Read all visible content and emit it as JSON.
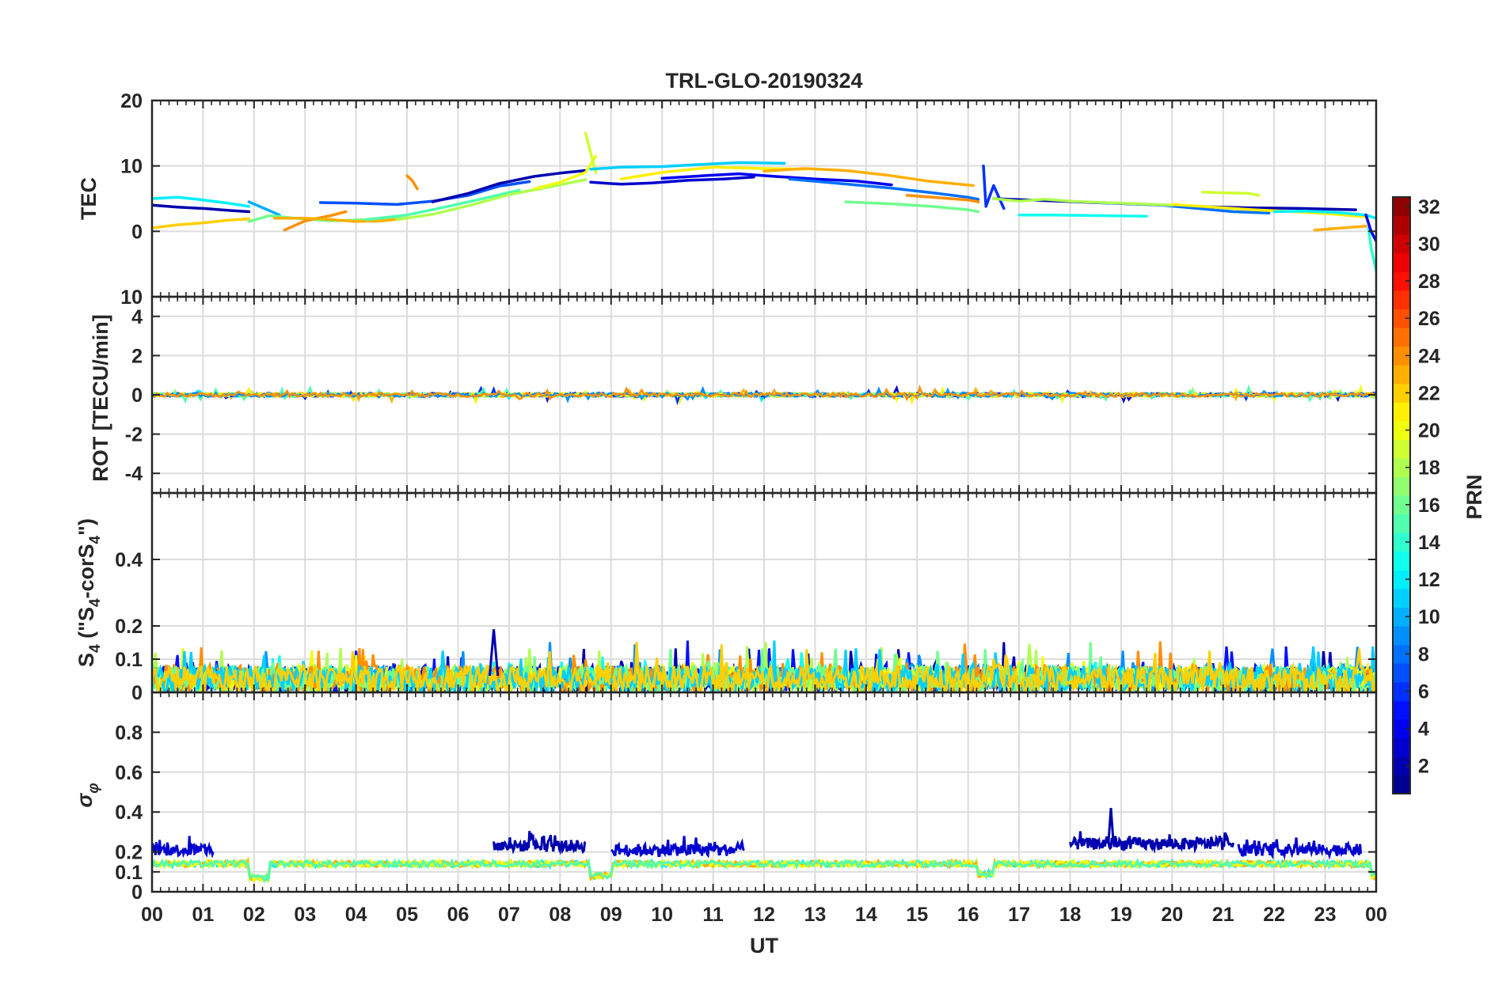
{
  "chart_data": {
    "type": "line",
    "title": "TRL-GLO-20190324",
    "xlabel": "UT",
    "x_tick_labels": [
      "00",
      "01",
      "02",
      "03",
      "04",
      "05",
      "06",
      "07",
      "08",
      "09",
      "10",
      "11",
      "12",
      "13",
      "14",
      "15",
      "16",
      "17",
      "18",
      "19",
      "20",
      "21",
      "22",
      "23",
      "00"
    ],
    "xlim": [
      0,
      24
    ],
    "colorbar": {
      "label": "PRN",
      "range": [
        1,
        32
      ],
      "tick_labels": [
        "2",
        "4",
        "6",
        "8",
        "10",
        "12",
        "14",
        "16",
        "18",
        "20",
        "22",
        "24",
        "26",
        "28",
        "30",
        "32"
      ]
    },
    "panels": [
      {
        "name": "tec",
        "ylabel": "TEC",
        "ylim": [
          -10,
          20
        ],
        "y_tick_labels": [
          "0",
          "10",
          "20"
        ],
        "y_tick_values": [
          0,
          10,
          20
        ],
        "series": [
          {
            "prn": 2,
            "x": [
              0.0,
              0.5,
              1.0,
              1.5,
              1.9
            ],
            "y": [
              4.0,
              3.7,
              3.5,
              3.2,
              3.0
            ]
          },
          {
            "prn": 12,
            "x": [
              0.0,
              0.5,
              1.0,
              1.5,
              1.9
            ],
            "y": [
              5.0,
              5.2,
              4.8,
              4.3,
              3.8
            ]
          },
          {
            "prn": 22,
            "x": [
              0.0,
              0.5,
              1.0,
              1.5,
              1.9
            ],
            "y": [
              0.5,
              1.0,
              1.3,
              1.7,
              1.9
            ]
          },
          {
            "prn": 10,
            "x": [
              1.9,
              2.2,
              2.5
            ],
            "y": [
              4.5,
              3.5,
              2.5
            ]
          },
          {
            "prn": 16,
            "x": [
              1.9,
              2.3,
              2.8,
              3.5,
              4.2,
              5.0
            ],
            "y": [
              1.5,
              2.4,
              2.0,
              1.6,
              1.8,
              2.0
            ]
          },
          {
            "prn": 24,
            "x": [
              2.6,
              3.0,
              3.5,
              3.8
            ],
            "y": [
              0.2,
              1.6,
              2.4,
              3.0
            ]
          },
          {
            "prn": 23,
            "x": [
              2.4,
              3.0,
              3.5,
              4.0,
              4.5,
              5.0
            ],
            "y": [
              2.0,
              2.0,
              1.8,
              1.5,
              1.6,
              2.0
            ]
          },
          {
            "prn": 7,
            "x": [
              3.3,
              4.0,
              4.8,
              5.5,
              6.2,
              6.8,
              7.4
            ],
            "y": [
              4.4,
              4.3,
              4.1,
              4.6,
              5.5,
              6.9,
              7.6
            ]
          },
          {
            "prn": 2,
            "x": [
              5.5,
              6.2,
              6.8,
              7.5,
              8.0,
              8.5
            ],
            "y": [
              4.5,
              5.8,
              7.3,
              8.4,
              8.9,
              9.3
            ]
          },
          {
            "prn": 15,
            "x": [
              4.2,
              5.0,
              5.8,
              6.6,
              7.2
            ],
            "y": [
              1.8,
              2.5,
              3.8,
              5.2,
              6.3
            ]
          },
          {
            "prn": 18,
            "x": [
              4.8,
              5.5,
              6.3,
              7.0,
              7.8,
              8.5
            ],
            "y": [
              1.8,
              2.6,
              4.1,
              5.6,
              6.8,
              7.9
            ]
          },
          {
            "prn": 24,
            "x": [
              5.0,
              5.1,
              5.2
            ],
            "y": [
              8.5,
              7.8,
              6.5
            ]
          },
          {
            "prn": 20,
            "x": [
              7.5,
              8.0,
              8.5,
              8.7
            ],
            "y": [
              6.5,
              7.5,
              9.0,
              11.5
            ]
          },
          {
            "prn": 19,
            "x": [
              8.5,
              8.6,
              8.7
            ],
            "y": [
              15.0,
              12.0,
              9.0
            ]
          },
          {
            "prn": 11,
            "x": [
              8.6,
              9.2,
              10.0,
              10.7,
              11.5,
              12.4
            ],
            "y": [
              9.5,
              9.8,
              9.9,
              10.2,
              10.5,
              10.4
            ]
          },
          {
            "prn": 3,
            "x": [
              8.6,
              9.2,
              9.8,
              10.5,
              11.2,
              11.8
            ],
            "y": [
              7.5,
              7.2,
              7.4,
              7.8,
              8.0,
              8.3
            ]
          },
          {
            "prn": 4,
            "x": [
              10.0,
              10.8,
              11.5,
              12.2,
              13.0,
              13.8,
              14.5
            ],
            "y": [
              8.1,
              8.5,
              8.8,
              8.4,
              8.0,
              7.7,
              7.1
            ]
          },
          {
            "prn": 21,
            "x": [
              9.2,
              10.0,
              11.0,
              12.0,
              12.8
            ],
            "y": [
              8.0,
              9.0,
              9.8,
              9.6,
              9.5
            ]
          },
          {
            "prn": 23,
            "x": [
              12.0,
              12.8,
              13.6,
              14.4,
              15.2,
              16.1
            ],
            "y": [
              9.2,
              9.6,
              9.3,
              8.6,
              7.7,
              7.0
            ]
          },
          {
            "prn": 8,
            "x": [
              12.5,
              13.5,
              14.5,
              15.3,
              16.0,
              16.2
            ],
            "y": [
              8.0,
              7.3,
              6.6,
              5.9,
              5.2,
              4.9
            ]
          },
          {
            "prn": 16,
            "x": [
              13.6,
              14.5,
              15.3,
              16.0,
              16.2
            ],
            "y": [
              4.5,
              4.2,
              3.8,
              3.3,
              3.0
            ]
          },
          {
            "prn": 24,
            "x": [
              14.8,
              15.5,
              16.0,
              16.2
            ],
            "y": [
              5.5,
              5.1,
              4.8,
              4.5
            ]
          },
          {
            "prn": 6,
            "x": [
              16.3,
              16.35,
              16.5,
              16.7
            ],
            "y": [
              10.0,
              3.8,
              7.0,
              3.5
            ]
          },
          {
            "prn": 2,
            "x": [
              16.5,
              17.5,
              18.5,
              19.5,
              20.5,
              21.5,
              22.5,
              23.6
            ],
            "y": [
              5.0,
              4.7,
              4.4,
              4.1,
              3.8,
              3.6,
              3.5,
              3.3
            ]
          },
          {
            "prn": 13,
            "x": [
              17.0,
              17.7,
              18.5,
              19.5
            ],
            "y": [
              2.5,
              2.5,
              2.4,
              2.3
            ]
          },
          {
            "prn": 8,
            "x": [
              18.5,
              19.2,
              19.8,
              20.5,
              21.2,
              21.9
            ],
            "y": [
              4.4,
              4.2,
              4.0,
              3.5,
              3.0,
              2.8
            ]
          },
          {
            "prn": 18,
            "x": [
              16.5,
              17.0,
              17.5,
              18.0,
              19.0,
              20.0
            ],
            "y": [
              5.0,
              4.6,
              4.9,
              4.6,
              4.3,
              4.0
            ]
          },
          {
            "prn": 19,
            "x": [
              20.6,
              21.0,
              21.5,
              21.7
            ],
            "y": [
              6.0,
              5.9,
              5.8,
              5.5
            ]
          },
          {
            "prn": 21,
            "x": [
              20.0,
              20.8,
              21.6,
              22.4,
              23.2,
              23.8
            ],
            "y": [
              4.1,
              3.7,
              3.3,
              3.0,
              2.6,
              2.2
            ]
          },
          {
            "prn": 12,
            "x": [
              22.0,
              22.6,
              23.2,
              23.8,
              24.0
            ],
            "y": [
              3.0,
              3.1,
              2.9,
              2.5,
              2.0
            ]
          },
          {
            "prn": 23,
            "x": [
              22.8,
              23.3,
              23.8
            ],
            "y": [
              0.2,
              0.5,
              0.8
            ]
          },
          {
            "prn": 14,
            "x": [
              23.85,
              23.9,
              24.0
            ],
            "y": [
              0.5,
              -2.5,
              -6.0
            ]
          },
          {
            "prn": 4,
            "x": [
              23.8,
              23.9,
              24.0
            ],
            "y": [
              2.5,
              0.0,
              -1.5
            ]
          }
        ]
      },
      {
        "name": "rot",
        "ylabel": "ROT [TECU/min]",
        "ylim": [
          -5,
          5
        ],
        "y_tick_labels": [
          "-4",
          "-2",
          "0",
          "2",
          "4"
        ],
        "y_tick_values": [
          -4,
          -2,
          0,
          2,
          4
        ],
        "top_tick_label": "10",
        "typical_abs_value": 0.1,
        "peak_abs_value": 0.3
      },
      {
        "name": "s4",
        "ylabel": "S4 (\"S4-corS4\")",
        "ylim": [
          0,
          0.6
        ],
        "y_tick_labels": [
          "0",
          "0.1",
          "0.2",
          "0.4"
        ],
        "y_tick_values": [
          0,
          0.1,
          0.2,
          0.4
        ],
        "typical_value": 0.05,
        "peak_value": 0.19,
        "peak_time": 6.7
      },
      {
        "name": "sigma_phi",
        "ylabel": "σφ",
        "ylim": [
          0,
          1.0
        ],
        "y_tick_labels": [
          "0",
          "0.1",
          "0.2",
          "0.4",
          "0.6",
          "0.8"
        ],
        "y_tick_values": [
          0,
          0.1,
          0.2,
          0.4,
          0.6,
          0.8
        ],
        "baseline_value": 0.14,
        "elevated_segments": [
          {
            "prn": 3,
            "x_start": 0.0,
            "x_end": 1.2,
            "level": 0.21
          },
          {
            "prn": 2,
            "x_start": 6.7,
            "x_end": 8.5,
            "level": 0.23
          },
          {
            "prn": 3,
            "x_start": 9.0,
            "x_end": 11.6,
            "level": 0.21
          },
          {
            "prn": 2,
            "x_start": 18.0,
            "x_end": 21.2,
            "level": 0.24
          },
          {
            "prn": 3,
            "x_start": 21.3,
            "x_end": 23.7,
            "level": 0.21
          }
        ],
        "peak_value": 0.42,
        "peak_time": 18.8,
        "dip_segments": [
          {
            "x_start": 1.9,
            "x_end": 2.3,
            "level": 0.07
          },
          {
            "x_start": 8.6,
            "x_end": 9.0,
            "level": 0.08
          },
          {
            "x_start": 16.2,
            "x_end": 16.5,
            "level": 0.09
          },
          {
            "x_start": 23.9,
            "x_end": 24.0,
            "level": 0.08
          }
        ]
      }
    ]
  }
}
